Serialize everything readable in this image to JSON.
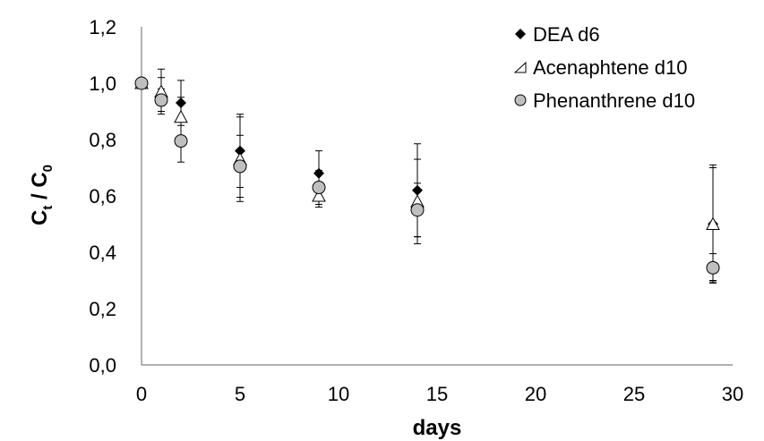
{
  "chart_data": {
    "type": "scatter",
    "title": "",
    "xlabel": "days",
    "ylabel_main": "C",
    "ylabel_main_sub": "t",
    "ylabel_sep": " / ",
    "ylabel_denom": "C",
    "ylabel_denom_sub": "0",
    "xlim": [
      0,
      30
    ],
    "ylim": [
      0.0,
      1.2
    ],
    "x_ticks": [
      0,
      5,
      10,
      15,
      20,
      25,
      30
    ],
    "x_tick_labels": [
      "0",
      "5",
      "10",
      "15",
      "20",
      "25",
      "30"
    ],
    "y_ticks": [
      0.0,
      0.2,
      0.4,
      0.6,
      0.8,
      1.0,
      1.2
    ],
    "y_tick_labels": [
      "0,0",
      "0,2",
      "0,4",
      "0,6",
      "0,8",
      "1,0",
      "1,2"
    ],
    "grid": false,
    "legend_position": "top-right",
    "series": [
      {
        "name": "DEA d6",
        "marker": "diamond",
        "color": "#000000",
        "points": [
          {
            "x": 0,
            "y": 1.0,
            "err": 0.0
          },
          {
            "x": 1,
            "y": 0.96,
            "err": 0.06
          },
          {
            "x": 2,
            "y": 0.93,
            "err": 0.08
          },
          {
            "x": 5,
            "y": 0.76,
            "err": 0.13
          },
          {
            "x": 9,
            "y": 0.68,
            "err": 0.08
          },
          {
            "x": 14,
            "y": 0.62,
            "err": 0.165
          },
          {
            "x": 29,
            "y": 0.5,
            "err": 0.21
          }
        ]
      },
      {
        "name": "Acenaphtene d10",
        "marker": "triangle",
        "color": "#ffffff",
        "points": [
          {
            "x": 0,
            "y": 1.0,
            "err": 0.0
          },
          {
            "x": 1,
            "y": 0.97,
            "err": 0.08
          },
          {
            "x": 2,
            "y": 0.88,
            "err": 0.07
          },
          {
            "x": 5,
            "y": 0.73,
            "err": 0.15
          },
          {
            "x": 9,
            "y": 0.6,
            "err": 0.04
          },
          {
            "x": 14,
            "y": 0.58,
            "err": 0.15
          },
          {
            "x": 29,
            "y": 0.5,
            "err": 0.2
          }
        ]
      },
      {
        "name": "Phenanthrene d10",
        "marker": "circle",
        "color": "#bfbfbf",
        "points": [
          {
            "x": 0,
            "y": 1.0,
            "err": 0.0
          },
          {
            "x": 1,
            "y": 0.94,
            "err": 0.04
          },
          {
            "x": 2,
            "y": 0.795,
            "err": 0.075
          },
          {
            "x": 5,
            "y": 0.705,
            "err": 0.11
          },
          {
            "x": 9,
            "y": 0.63,
            "err": 0.06
          },
          {
            "x": 14,
            "y": 0.55,
            "err": 0.095
          },
          {
            "x": 29,
            "y": 0.345,
            "err": 0.05
          }
        ]
      }
    ]
  }
}
